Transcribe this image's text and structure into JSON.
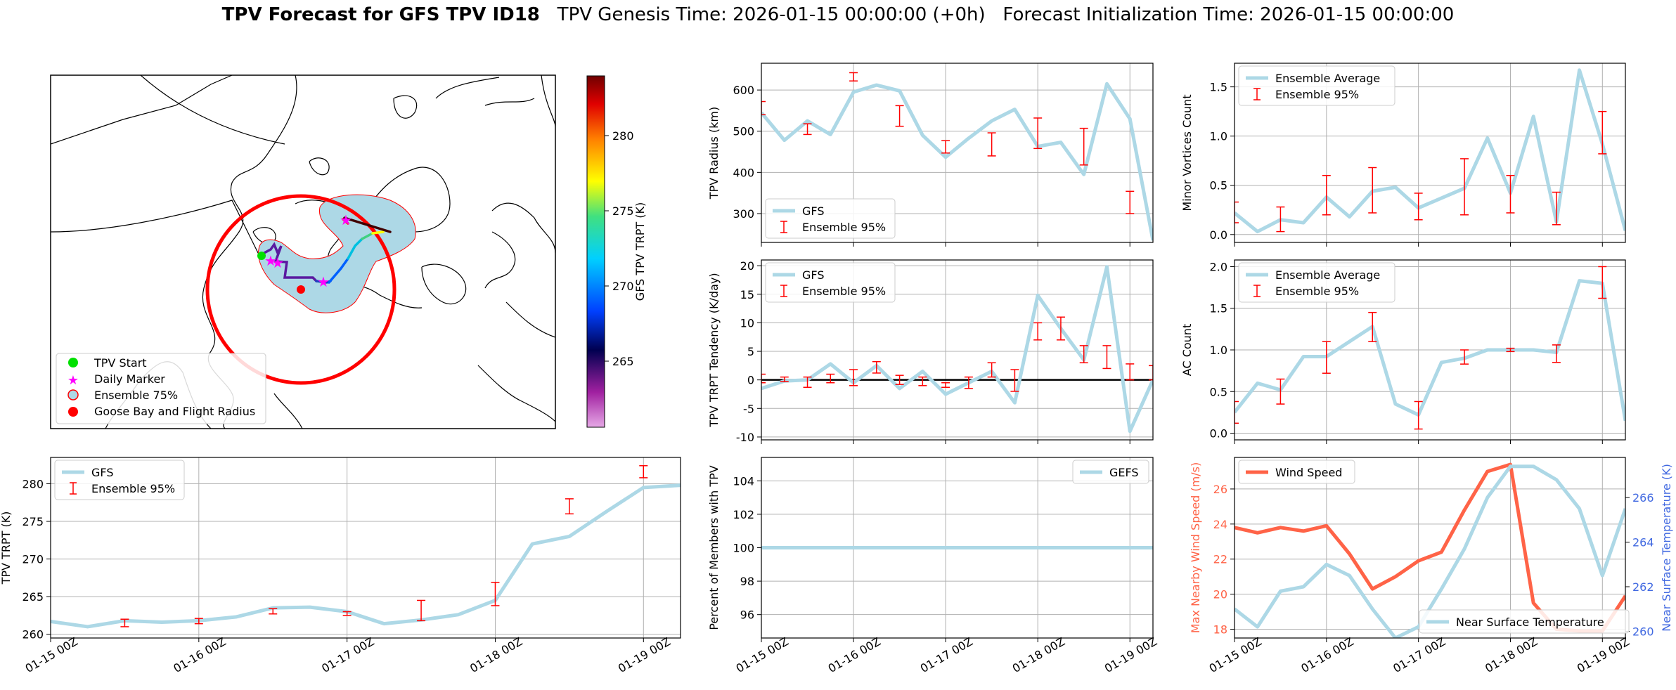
{
  "title": {
    "bold": "TPV Forecast for GFS TPV ID18",
    "rest": "   TPV Genesis Time: 2026-01-15 00:00:00 (+0h)   Forecast Initialization Time: 2026-01-15 00:00:00"
  },
  "colors": {
    "gfs": "#add8e6",
    "ensemble": "#ff0000",
    "wind": "#ff6347",
    "temp_axis": "#4169e1",
    "zero_line": "#000000"
  },
  "time_ticks": [
    "01-15 00Z",
    "01-16 00Z",
    "01-17 00Z",
    "01-18 00Z",
    "01-19 00Z"
  ],
  "map": {
    "legend": [
      "TPV Start",
      "Daily Marker",
      "Ensemble 75%",
      "Goose Bay and Flight Radius"
    ],
    "colorbar_label": "GFS TPV TRPT (K)",
    "colorbar_ticks": [
      "265",
      "270",
      "275",
      "280"
    ]
  },
  "chart_data": [
    {
      "id": "radius",
      "type": "line",
      "ylabel": "TPV Radius (km)",
      "ylim": [
        230,
        665
      ],
      "yticks": [
        300,
        400,
        500,
        600
      ],
      "legend": "bottom-left",
      "series": [
        {
          "name": "GFS",
          "x": [
            0,
            0.25,
            0.5,
            0.75,
            1,
            1.25,
            1.5,
            1.75,
            2,
            2.25,
            2.5,
            2.75,
            3,
            3.25,
            3.5,
            3.75,
            4,
            4.25
          ],
          "values": [
            545,
            478,
            525,
            492,
            595,
            612,
            598,
            490,
            437,
            483,
            525,
            553,
            463,
            473,
            395,
            615,
            530,
            235
          ]
        },
        {
          "name": "Ensemble 95%",
          "type": "errorbar",
          "x": [
            0,
            0.5,
            1,
            1.5,
            2,
            2.5,
            3,
            3.5,
            4
          ],
          "lo": [
            540,
            492,
            622,
            512,
            447,
            440,
            458,
            418,
            300
          ],
          "hi": [
            572,
            518,
            642,
            562,
            477,
            496,
            532,
            507,
            354
          ]
        }
      ]
    },
    {
      "id": "minor",
      "type": "line",
      "ylabel": "Minor Vortices Count",
      "ylim": [
        -0.08,
        1.74
      ],
      "yticks": [
        0.0,
        0.5,
        1.0,
        1.5
      ],
      "legend": "top-left",
      "series": [
        {
          "name": "Ensemble Average",
          "x": [
            0,
            0.25,
            0.5,
            0.75,
            1,
            1.25,
            1.5,
            1.75,
            2,
            2.25,
            2.5,
            2.75,
            3,
            3.25,
            3.5,
            3.75,
            4,
            4.25
          ],
          "values": [
            0.22,
            0.03,
            0.15,
            0.12,
            0.38,
            0.18,
            0.44,
            0.48,
            0.27,
            0.37,
            0.47,
            0.98,
            0.42,
            1.2,
            0.13,
            1.67,
            0.92,
            0.04
          ]
        },
        {
          "name": "Ensemble 95%",
          "type": "errorbar",
          "x": [
            0,
            0.5,
            1,
            1.5,
            2,
            2.5,
            3,
            3.5,
            4
          ],
          "lo": [
            0.12,
            0.03,
            0.2,
            0.22,
            0.15,
            0.2,
            0.22,
            0.1,
            0.82
          ],
          "hi": [
            0.33,
            0.28,
            0.6,
            0.68,
            0.42,
            0.77,
            0.6,
            0.43,
            1.25
          ]
        }
      ]
    },
    {
      "id": "tendency",
      "type": "line",
      "ylabel": "TPV TRPT Tendency (K/day)",
      "ylim": [
        -10.5,
        21
      ],
      "yticks": [
        -10,
        -5,
        0,
        5,
        10,
        15,
        20
      ],
      "legend": "top-left",
      "hline": 0,
      "series": [
        {
          "name": "GFS",
          "x": [
            0,
            0.25,
            0.5,
            0.75,
            1,
            1.25,
            1.5,
            1.75,
            2,
            2.25,
            2.5,
            2.75,
            3,
            3.25,
            3.5,
            3.75,
            4,
            4.25
          ],
          "values": [
            -1.5,
            -0.2,
            0.0,
            2.8,
            -0.5,
            2.5,
            -1.5,
            1.5,
            -2.5,
            -0.5,
            1.5,
            -4.0,
            14.8,
            9.0,
            3.5,
            19.8,
            -9.0,
            0.0
          ]
        },
        {
          "name": "Ensemble 95%",
          "type": "errorbar",
          "x": [
            0,
            0.25,
            0.5,
            0.75,
            1,
            1.25,
            1.5,
            1.75,
            2,
            2.25,
            2.5,
            2.75,
            3,
            3.25,
            3.5,
            3.75,
            4,
            4.25
          ],
          "lo": [
            -0.5,
            -0.3,
            -1.3,
            -0.5,
            -1.0,
            1.2,
            -0.8,
            -1.0,
            -1.3,
            -1.5,
            0.5,
            -2.0,
            7.0,
            7.0,
            3.0,
            2.0,
            0.0,
            0.0
          ],
          "hi": [
            1.0,
            0.5,
            0.5,
            1.0,
            1.8,
            3.2,
            0.8,
            0.5,
            -0.5,
            0.5,
            3.0,
            1.8,
            10.0,
            11.0,
            6.0,
            6.0,
            2.8,
            2.5
          ]
        }
      ]
    },
    {
      "id": "ac",
      "type": "line",
      "ylabel": "AC Count",
      "ylim": [
        -0.08,
        2.08
      ],
      "yticks": [
        0.0,
        0.5,
        1.0,
        1.5,
        2.0
      ],
      "legend": "top-left",
      "series": [
        {
          "name": "Ensemble Average",
          "x": [
            0,
            0.25,
            0.5,
            0.75,
            1,
            1.25,
            1.5,
            1.75,
            2,
            2.25,
            2.5,
            2.75,
            3,
            3.25,
            3.5,
            3.75,
            4,
            4.25
          ],
          "values": [
            0.25,
            0.6,
            0.52,
            0.92,
            0.92,
            1.1,
            1.28,
            0.35,
            0.22,
            0.85,
            0.9,
            1.0,
            1.0,
            1.0,
            0.97,
            1.83,
            1.8,
            0.15
          ]
        },
        {
          "name": "Ensemble 95%",
          "type": "errorbar",
          "x": [
            0,
            0.5,
            1,
            1.5,
            2,
            2.5,
            3,
            3.5,
            4
          ],
          "lo": [
            0.12,
            0.35,
            0.72,
            1.1,
            0.05,
            0.83,
            0.98,
            0.85,
            1.62
          ],
          "hi": [
            0.38,
            0.65,
            1.1,
            1.45,
            0.38,
            1.0,
            1.02,
            1.06,
            2.0
          ]
        }
      ]
    },
    {
      "id": "trpt",
      "type": "line",
      "ylabel": "TPV TRPT (K)",
      "ylim": [
        259.5,
        283.5
      ],
      "yticks": [
        260,
        265,
        270,
        275,
        280
      ],
      "legend": "top-left",
      "series": [
        {
          "name": "GFS",
          "x": [
            0,
            0.25,
            0.5,
            0.75,
            1,
            1.25,
            1.5,
            1.75,
            2,
            2.25,
            2.5,
            2.75,
            3,
            3.25,
            3.5,
            3.75,
            4,
            4.25
          ],
          "values": [
            261.7,
            261.0,
            261.8,
            261.6,
            261.8,
            262.3,
            263.5,
            263.6,
            263.0,
            261.4,
            261.9,
            262.6,
            264.5,
            272.0,
            273.0,
            276.3,
            279.5,
            279.8
          ]
        },
        {
          "name": "Ensemble 95%",
          "type": "errorbar",
          "x": [
            0.5,
            1,
            1.5,
            2,
            2.5,
            3,
            3.5,
            4
          ],
          "lo": [
            261.0,
            261.4,
            262.7,
            262.5,
            261.8,
            263.8,
            276.0,
            280.8
          ],
          "hi": [
            262.0,
            262.1,
            263.4,
            263.0,
            264.5,
            266.9,
            278.0,
            282.4
          ]
        }
      ]
    },
    {
      "id": "percent",
      "type": "line",
      "ylabel": "Percent of Members with TPV",
      "ylim": [
        94.6,
        105.4
      ],
      "yticks": [
        96,
        98,
        100,
        102,
        104
      ],
      "legend": "top-right",
      "series": [
        {
          "name": "GEFS",
          "x": [
            0,
            4.25
          ],
          "values": [
            100,
            100
          ]
        }
      ]
    },
    {
      "id": "wind",
      "type": "line",
      "ylabel": "Max Nearby Wind Speed (m/s)",
      "ylim": [
        17.5,
        27.8
      ],
      "yticks": [
        18,
        20,
        22,
        24,
        26
      ],
      "ylabel_right": "Near Surface Temperature (K)",
      "ylim_right": [
        259.7,
        267.8
      ],
      "yticks_right": [
        260,
        262,
        264,
        266
      ],
      "series": [
        {
          "name": "Wind Speed",
          "axis": "left",
          "x": [
            0,
            0.25,
            0.5,
            0.75,
            1,
            1.25,
            1.5,
            1.75,
            2,
            2.25,
            2.5,
            2.75,
            3,
            3.25,
            3.5,
            3.75,
            4,
            4.25
          ],
          "values": [
            23.8,
            23.5,
            23.8,
            23.6,
            23.9,
            22.3,
            20.3,
            21.0,
            21.9,
            22.4,
            24.8,
            27.0,
            27.4,
            19.5,
            18.0,
            17.9,
            17.9,
            19.9
          ]
        },
        {
          "name": "Near Surface Temperature",
          "axis": "right",
          "x": [
            0,
            0.25,
            0.5,
            0.75,
            1,
            1.25,
            1.5,
            1.75,
            2,
            2.25,
            2.5,
            2.75,
            3,
            3.25,
            3.5,
            3.75,
            4,
            4.25
          ],
          "values": [
            261.0,
            260.2,
            261.8,
            262.0,
            263.0,
            262.5,
            261.0,
            259.7,
            260.2,
            261.9,
            263.7,
            266.0,
            267.4,
            267.4,
            266.8,
            265.5,
            262.5,
            265.5
          ]
        }
      ]
    }
  ]
}
